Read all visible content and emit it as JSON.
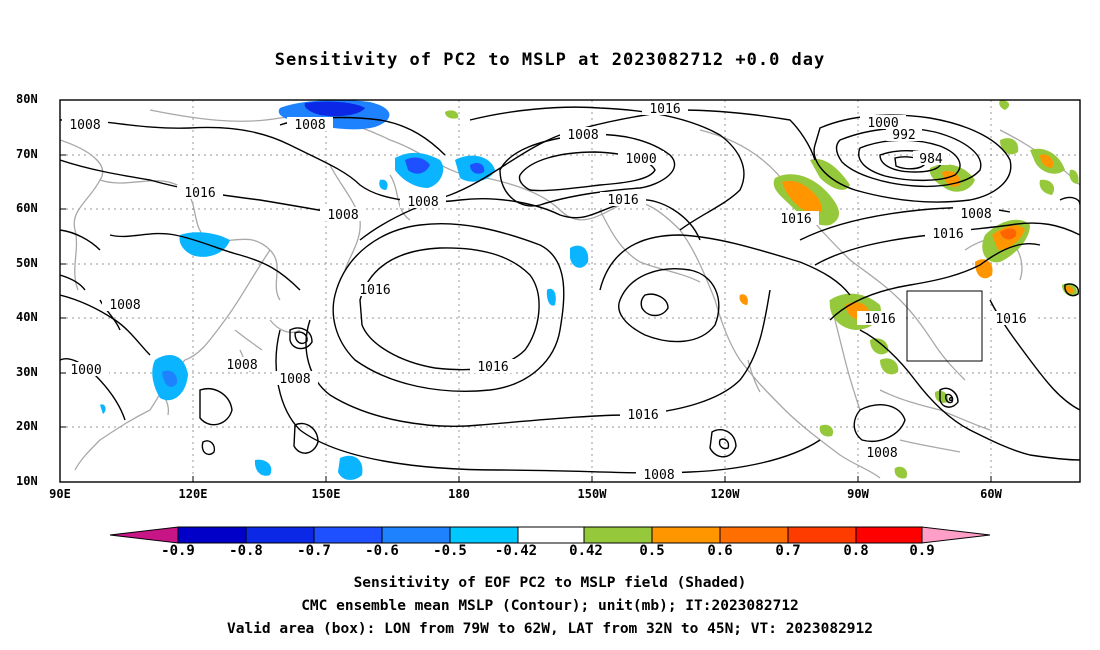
{
  "title": "Sensitivity of PC2 to MSLP at 2023082712 +0.0 day",
  "map": {
    "lat_labels": [
      "80N",
      "70N",
      "60N",
      "50N",
      "40N",
      "30N",
      "20N",
      "10N"
    ],
    "lon_labels": [
      "90E",
      "120E",
      "150E",
      "180",
      "150W",
      "120W",
      "90W",
      "60W"
    ],
    "contour_unit": "mb",
    "contour_labels": [
      {
        "text": "1008"
      },
      {
        "text": "1008"
      },
      {
        "text": "1016"
      },
      {
        "text": "1008"
      },
      {
        "text": "1008"
      },
      {
        "text": "1016"
      },
      {
        "text": "1008"
      },
      {
        "text": "1000"
      },
      {
        "text": "1016"
      },
      {
        "text": "1008"
      },
      {
        "text": "1000"
      },
      {
        "text": "1016"
      },
      {
        "text": "1008"
      },
      {
        "text": "1016"
      },
      {
        "text": "1000"
      },
      {
        "text": "992"
      },
      {
        "text": "984"
      },
      {
        "text": "1008"
      },
      {
        "text": "1016"
      },
      {
        "text": "1016"
      },
      {
        "text": "1016"
      },
      {
        "text": "1016"
      },
      {
        "text": "1008"
      },
      {
        "text": "1008"
      },
      {
        "text": "1008"
      },
      {
        "text": "1016"
      }
    ],
    "valid_box": {
      "lon_from": "79W",
      "lon_to": "62W",
      "lat_from": "32N",
      "lat_to": "45N"
    },
    "colors": {
      "contour": "#000000",
      "coast": "#a8a8a8",
      "grid": "#999999"
    }
  },
  "colorbar": {
    "labels": [
      "-0.9",
      "-0.8",
      "-0.7",
      "-0.6",
      "-0.5",
      "-0.42",
      "0.42",
      "0.5",
      "0.6",
      "0.7",
      "0.8",
      "0.9"
    ],
    "colors": [
      "#c71585",
      "#0000c8",
      "#0a28e6",
      "#1e50ff",
      "#1e82ff",
      "#0ab4ff",
      "#00d2ff",
      "#ffffff",
      "#96c83c",
      "#ff9600",
      "#ff6400",
      "#ff3c00",
      "#ff0000",
      "#ff9ec6"
    ]
  },
  "captions": [
    "Sensitivity of EOF PC2 to MSLP field (Shaded)",
    "CMC ensemble mean MSLP (Contour); unit(mb); IT:2023082712",
    "Valid area (box): LON from 79W to 62W, LAT from 32N to 45N; VT: 2023082912"
  ]
}
